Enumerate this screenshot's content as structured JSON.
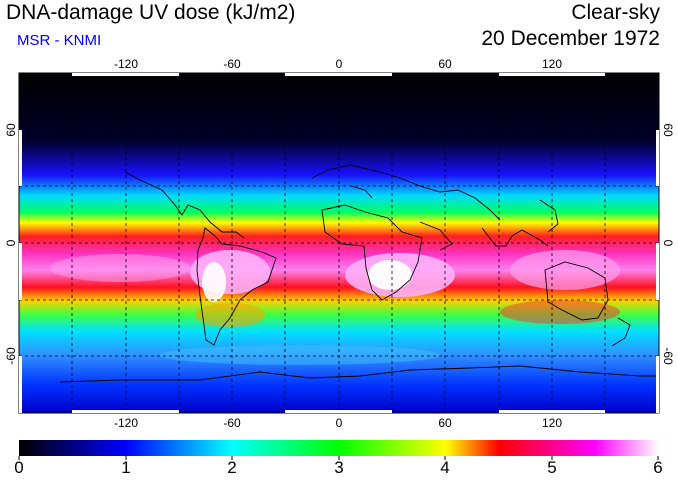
{
  "header": {
    "title": "DNA-damage UV dose (kJ/m2)",
    "source": "MSR - KNMI",
    "sky_condition": "Clear-sky",
    "date": "20 December 1972"
  },
  "colors": {
    "source_text": "#0000ff",
    "graticule": "#000000"
  },
  "map": {
    "lon_ticks": [
      "-120",
      "-60",
      "0",
      "60",
      "120"
    ],
    "lat_ticks_left": [
      "60",
      "0",
      "-60"
    ],
    "lat_ticks_right": [
      "60",
      "0",
      "-60"
    ],
    "lon_range": [
      -180,
      180
    ],
    "lat_range": [
      -90,
      90
    ],
    "graticule": "dashed 30° grid"
  },
  "colorbar": {
    "labels": [
      "0",
      "1",
      "2",
      "3",
      "4",
      "5",
      "6"
    ],
    "min": 0,
    "max": 6,
    "colors": [
      "#000000",
      "#0000ff",
      "#00ffff",
      "#00ff00",
      "#ffff00",
      "#ff0000",
      "#ff00ff",
      "#ffffff"
    ]
  }
}
